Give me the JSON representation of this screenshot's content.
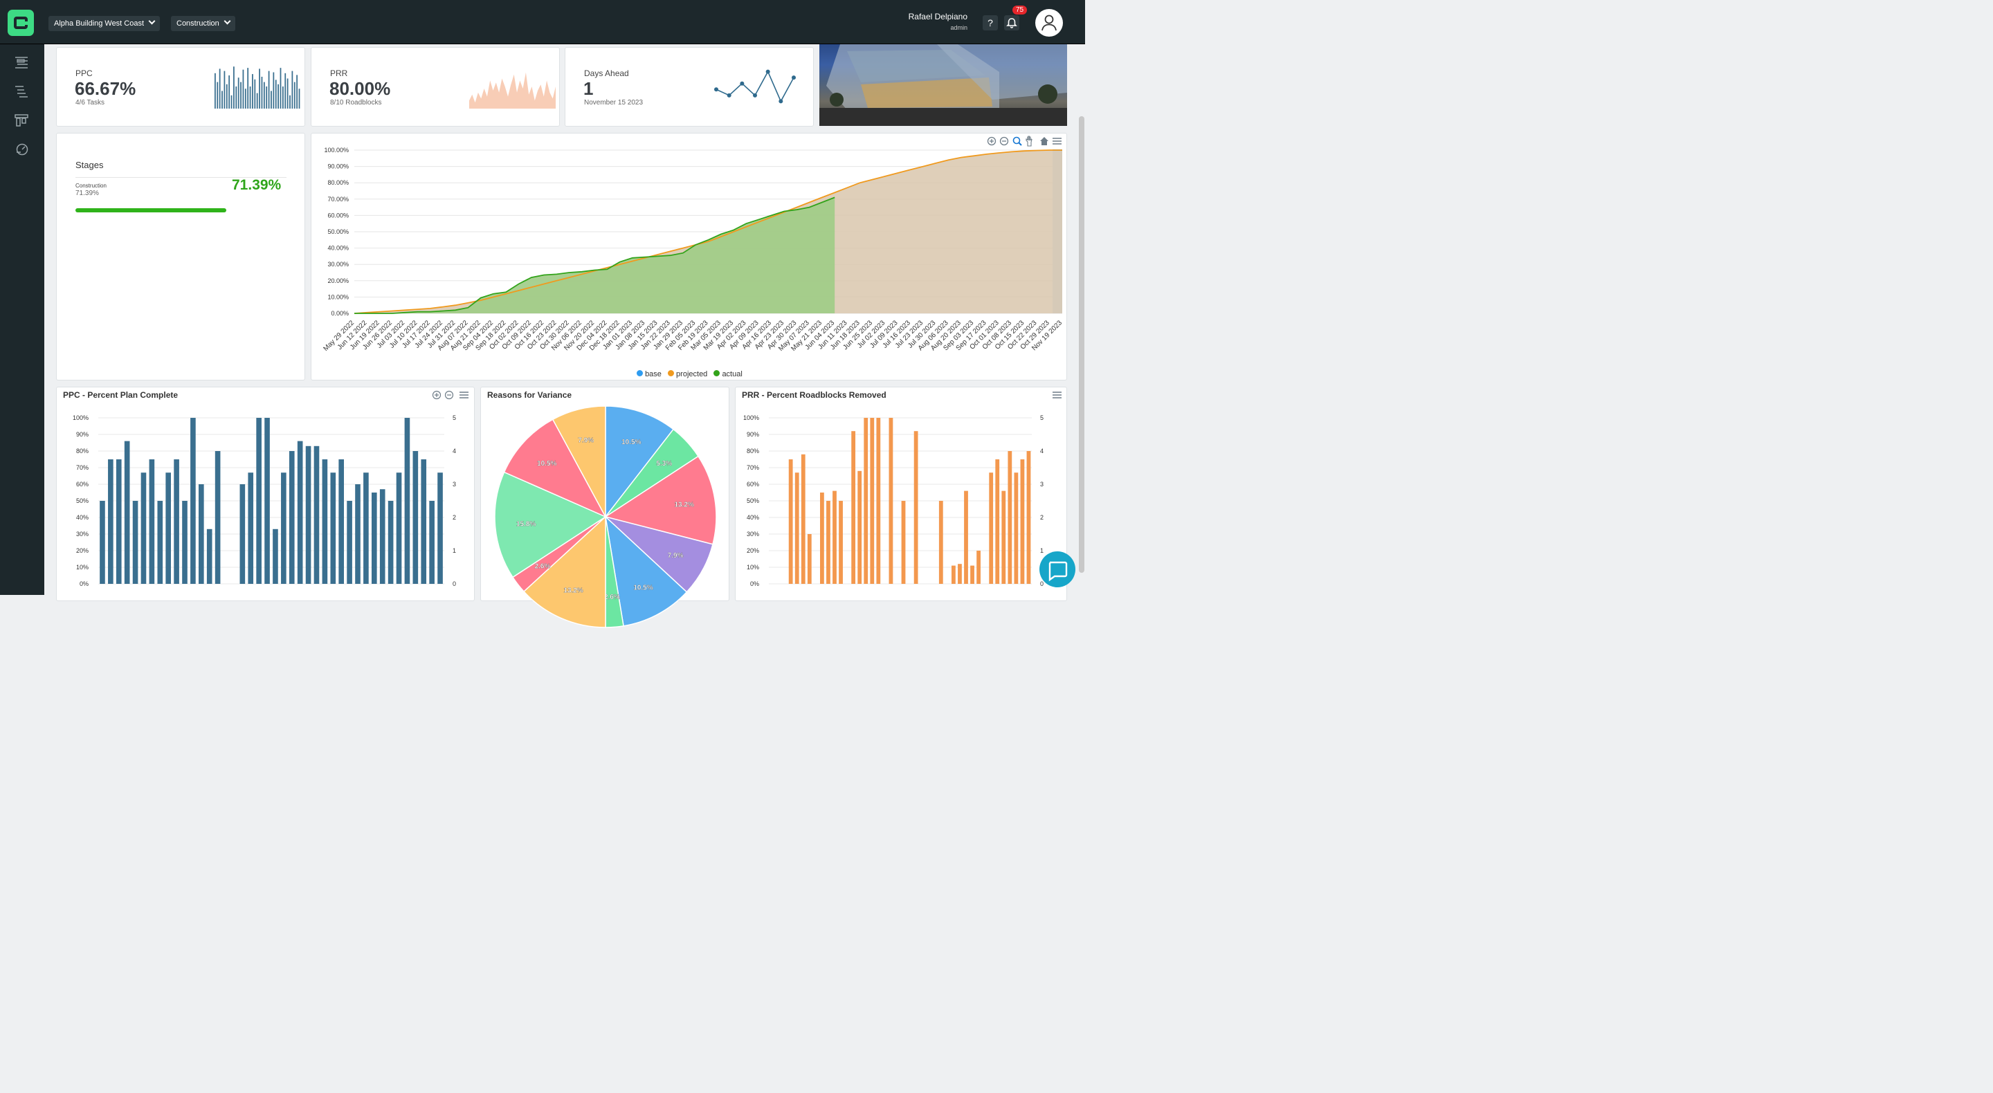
{
  "topbar": {
    "project": "Alpha Building West Coast",
    "phase": "Construction",
    "user_name": "Rafael Delpiano",
    "user_role": "admin",
    "help_label": "?",
    "notification_count": "75"
  },
  "kpis": {
    "ppc": {
      "label": "PPC",
      "value": "66.67%",
      "sub": "4/6 Tasks"
    },
    "prr": {
      "label": "PRR",
      "value": "80.00%",
      "sub": "8/10 Roadblocks"
    },
    "days": {
      "label": "Days Ahead",
      "value": "1",
      "sub": "November 15 2023"
    }
  },
  "stages": {
    "title": "Stages",
    "name": "Construction",
    "pct_text": "71.39%",
    "big_pct": "71.39%",
    "progress": 0.7139
  },
  "colors": {
    "ppc_bar": "#3a6f8f",
    "prr_bar": "#f3984e",
    "base": "#2e9cf0",
    "projected": "#f09a1e",
    "actual": "#32a31a"
  },
  "chart_data": [
    {
      "type": "area",
      "title": "",
      "ylim": [
        0,
        100
      ],
      "y_ticks": [
        "0.00%",
        "10.00%",
        "20.00%",
        "30.00%",
        "40.00%",
        "50.00%",
        "60.00%",
        "70.00%",
        "80.00%",
        "90.00%",
        "100.00%"
      ],
      "x_ticks": [
        "May 29 2022",
        "Jun 12 2022",
        "Jun 19 2022",
        "Jun 26 2022",
        "Jul 03 2022",
        "Jul 10 2022",
        "Jul 17 2022",
        "Jul 24 2022",
        "Jul 31 2022",
        "Aug 07 2022",
        "Aug 21 2022",
        "Sep 04 2022",
        "Sep 18 2022",
        "Oct 02 2022",
        "Oct 09 2022",
        "Oct 16 2022",
        "Oct 23 2022",
        "Oct 30 2022",
        "Nov 06 2022",
        "Nov 20 2022",
        "Dec 04 2022",
        "Dec 18 2022",
        "Jan 01 2023",
        "Jan 08 2023",
        "Jan 15 2023",
        "Jan 22 2023",
        "Jan 29 2023",
        "Feb 05 2023",
        "Feb 19 2023",
        "Mar 05 2023",
        "Mar 19 2023",
        "Apr 02 2023",
        "Apr 09 2023",
        "Apr 16 2023",
        "Apr 23 2023",
        "Apr 30 2023",
        "May 07 2023",
        "May 21 2023",
        "Jun 04 2023",
        "Jun 11 2023",
        "Jun 18 2023",
        "Jun 25 2023",
        "Jul 02 2023",
        "Jul 09 2023",
        "Jul 16 2023",
        "Jul 23 2023",
        "Jul 30 2023",
        "Aug 06 2023",
        "Aug 20 2023",
        "Sep 03 2023",
        "Sep 17 2023",
        "Oct 01 2023",
        "Oct 08 2023",
        "Oct 15 2023",
        "Oct 22 2023",
        "Oct 29 2023",
        "Nov 19 2023"
      ],
      "legend": [
        "base",
        "projected",
        "actual"
      ],
      "legend_position": "bottom",
      "series": [
        {
          "name": "projected",
          "values": [
            0,
            0.5,
            1,
            1.5,
            2,
            2.5,
            3,
            4,
            5,
            6.5,
            8,
            10,
            12,
            14,
            16,
            18,
            20,
            22,
            24,
            26,
            28,
            30,
            32,
            34,
            36,
            38,
            40,
            42,
            44,
            47,
            50,
            53,
            56,
            59,
            62,
            65,
            68,
            71,
            74,
            77,
            80,
            82,
            84,
            86,
            88,
            90,
            92,
            94,
            95.5,
            96.5,
            97.5,
            98.3,
            99,
            99.5,
            99.8,
            100,
            100
          ]
        },
        {
          "name": "actual",
          "values": [
            0,
            0,
            0,
            0,
            0.5,
            1,
            1,
            1.5,
            2,
            3.5,
            9.5,
            12,
            13,
            18,
            22,
            23.5,
            24,
            25,
            25.5,
            26.5,
            27,
            31.5,
            34,
            34.5,
            35,
            35.5,
            37,
            42,
            45,
            48.5,
            51,
            55,
            57.5,
            60,
            62.5,
            63.5,
            65,
            68,
            71
          ]
        }
      ]
    },
    {
      "type": "bar",
      "title": "PPC - Percent Plan Complete",
      "ylim": [
        0,
        100
      ],
      "y_ticks": [
        "0%",
        "10%",
        "20%",
        "30%",
        "40%",
        "50%",
        "60%",
        "70%",
        "80%",
        "90%",
        "100%"
      ],
      "y2_ticks": [
        "0",
        "1",
        "2",
        "3",
        "4",
        "5"
      ],
      "values": [
        50,
        75,
        75,
        86,
        50,
        67,
        75,
        50,
        67,
        75,
        50,
        100,
        60,
        33,
        80,
        0,
        0,
        60,
        67,
        100,
        100,
        33,
        67,
        80,
        86,
        83,
        83,
        75,
        67,
        75,
        50,
        60,
        67,
        55,
        57,
        50,
        67,
        100,
        80,
        75,
        50,
        67
      ]
    },
    {
      "type": "pie",
      "title": "Reasons for Variance",
      "slices": [
        {
          "label": "10.5%",
          "value": 10.5,
          "color": "#5aaef0"
        },
        {
          "label": "5.3%",
          "value": 5.3,
          "color": "#6ce6a2"
        },
        {
          "label": "13.2%",
          "value": 13.2,
          "color": "#ff7b8f"
        },
        {
          "label": "7.9%",
          "value": 7.9,
          "color": "#a48ee0"
        },
        {
          "label": "10.5%",
          "value": 10.5,
          "color": "#5aaef0"
        },
        {
          "label": "2.6%",
          "value": 2.6,
          "color": "#6ce6a2"
        },
        {
          "label": "13.2%",
          "value": 13.2,
          "color": "#fdc76e"
        },
        {
          "label": "2.6%",
          "value": 2.6,
          "color": "#ff7b8f"
        },
        {
          "label": "15.8%",
          "value": 15.8,
          "color": "#7ee8b0"
        },
        {
          "label": "10.5%",
          "value": 10.5,
          "color": "#ff7b8f"
        },
        {
          "label": "7.9%",
          "value": 7.9,
          "color": "#fdc76e"
        }
      ]
    },
    {
      "type": "bar",
      "title": "PRR - Percent Roadblocks Removed",
      "ylim": [
        0,
        100
      ],
      "y_ticks": [
        "0%",
        "10%",
        "20%",
        "30%",
        "40%",
        "50%",
        "60%",
        "70%",
        "80%",
        "90%",
        "100%"
      ],
      "y2_ticks": [
        "0",
        "1",
        "2",
        "3",
        "4",
        "5"
      ],
      "values": [
        0,
        0,
        0,
        75,
        67,
        78,
        30,
        0,
        55,
        50,
        56,
        50,
        0,
        92,
        68,
        100,
        100,
        100,
        0,
        100,
        0,
        50,
        0,
        92,
        0,
        0,
        0,
        50,
        0,
        11,
        12,
        56,
        11,
        20,
        0,
        67,
        75,
        56,
        80,
        67,
        75,
        80
      ]
    }
  ],
  "sparks": {
    "ppc": [
      80,
      60,
      90,
      40,
      85,
      55,
      75,
      30,
      95,
      50,
      70,
      60,
      88,
      45,
      92,
      50,
      78,
      66,
      35,
      90,
      72,
      60,
      50,
      85,
      40,
      82,
      65,
      55,
      92,
      50,
      80,
      68,
      30,
      85,
      60,
      76,
      45
    ],
    "prr": [
      20,
      35,
      15,
      40,
      25,
      50,
      30,
      70,
      45,
      65,
      40,
      75,
      55,
      30,
      60,
      85,
      40,
      70,
      50,
      90,
      35,
      55,
      20,
      45,
      60,
      30,
      70,
      40,
      25,
      55
    ],
    "days": [
      3,
      2,
      4,
      2,
      6,
      1,
      5
    ]
  }
}
